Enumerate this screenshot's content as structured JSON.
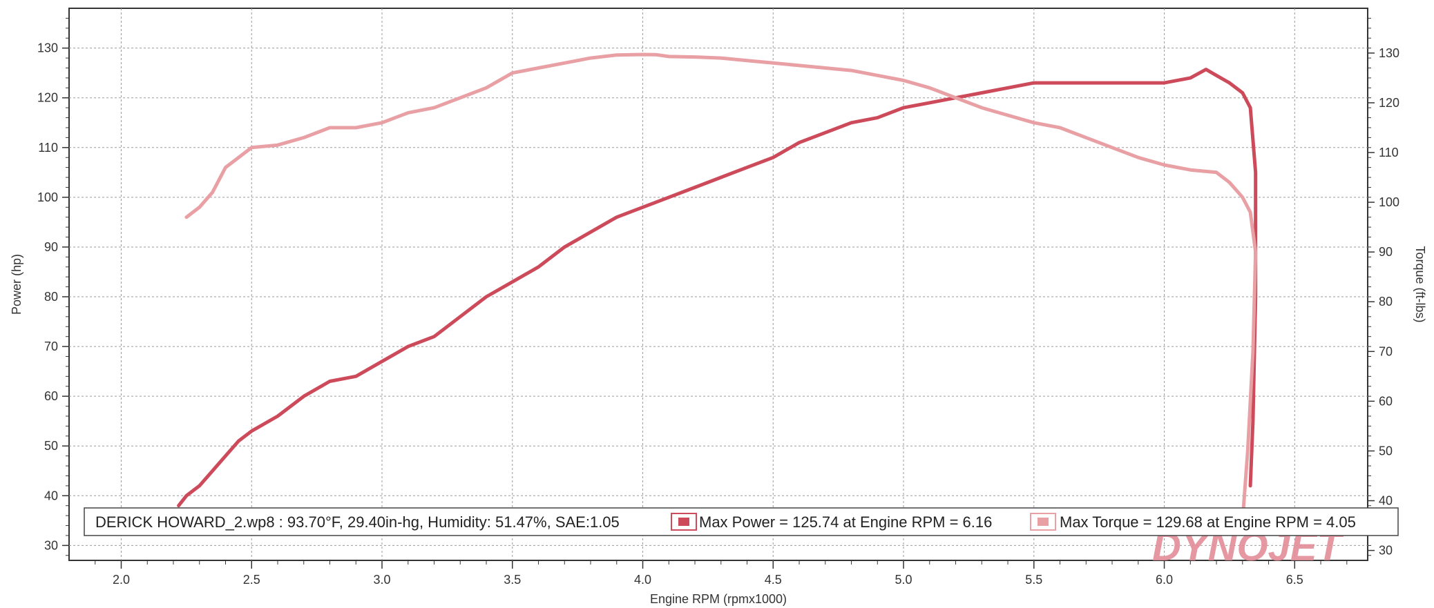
{
  "chart_data": {
    "type": "line",
    "title": "",
    "xlabel": "Engine RPM (rpmx1000)",
    "ylabel": "Power (hp)",
    "y2label": "Torque (ft-lbs)",
    "xlim": [
      1.8,
      6.78
    ],
    "ylim": [
      27,
      138
    ],
    "y2lim": [
      28,
      139
    ],
    "x_ticks": [
      "2.0",
      "2.5",
      "3.0",
      "3.5",
      "4.0",
      "4.5",
      "5.0",
      "5.5",
      "6.0",
      "6.5"
    ],
    "y_ticks": [
      "30",
      "40",
      "50",
      "60",
      "70",
      "80",
      "90",
      "100",
      "110",
      "120",
      "130"
    ],
    "y2_ticks": [
      "30",
      "40",
      "50",
      "60",
      "70",
      "80",
      "90",
      "100",
      "110",
      "120",
      "130"
    ],
    "grid": true,
    "series": [
      {
        "name": "Power",
        "axis": "left",
        "color": "#cc4a5a",
        "x": [
          2.22,
          2.25,
          2.3,
          2.35,
          2.4,
          2.45,
          2.5,
          2.6,
          2.7,
          2.8,
          2.9,
          3.0,
          3.1,
          3.2,
          3.3,
          3.4,
          3.5,
          3.6,
          3.7,
          3.8,
          3.9,
          4.0,
          4.1,
          4.2,
          4.3,
          4.4,
          4.5,
          4.6,
          4.7,
          4.8,
          4.9,
          5.0,
          5.1,
          5.2,
          5.3,
          5.4,
          5.5,
          5.6,
          5.7,
          5.8,
          5.9,
          6.0,
          6.1,
          6.16,
          6.2,
          6.25,
          6.3,
          6.33,
          6.35,
          6.35,
          6.34,
          6.33
        ],
        "y": [
          38,
          40,
          42,
          45,
          48,
          51,
          53,
          56,
          60,
          63,
          64,
          67,
          70,
          72,
          76,
          80,
          83,
          86,
          90,
          93,
          96,
          98,
          100,
          102,
          104,
          106,
          108,
          111,
          113,
          115,
          116,
          118,
          119,
          120,
          121,
          122,
          123,
          123,
          123,
          123,
          123,
          123,
          124,
          125.7,
          124.5,
          123,
          121,
          118,
          105,
          80,
          55,
          42
        ]
      },
      {
        "name": "Torque",
        "axis": "right",
        "color": "#e8a0a4",
        "x": [
          2.25,
          2.3,
          2.35,
          2.4,
          2.45,
          2.5,
          2.6,
          2.7,
          2.8,
          2.9,
          3.0,
          3.1,
          3.2,
          3.3,
          3.4,
          3.5,
          3.6,
          3.7,
          3.8,
          3.9,
          4.0,
          4.05,
          4.1,
          4.2,
          4.3,
          4.4,
          4.5,
          4.6,
          4.7,
          4.8,
          4.9,
          5.0,
          5.1,
          5.2,
          5.3,
          5.4,
          5.5,
          5.6,
          5.7,
          5.8,
          5.9,
          6.0,
          6.1,
          6.2,
          6.25,
          6.3,
          6.33,
          6.35,
          6.34,
          6.32,
          6.3
        ],
        "y": [
          97,
          99,
          102,
          107,
          109,
          111,
          111.5,
          113,
          115,
          115,
          116,
          118,
          119,
          121,
          123,
          126,
          127,
          128,
          129,
          129.6,
          129.7,
          129.68,
          129.3,
          129.2,
          129,
          128.5,
          128,
          127.5,
          127,
          126.5,
          125.5,
          124.5,
          123,
          121,
          119,
          117.5,
          116,
          115,
          113,
          111,
          109,
          107.5,
          106.5,
          106,
          104,
          101,
          98,
          90,
          70,
          50,
          36
        ]
      }
    ],
    "legend": {
      "run_info": "DERICK HOWARD_2.wp8 : 93.70°F, 29.40in-hg, Humidity: 51.47%, SAE:1.05",
      "power_summary": "Max Power = 125.74 at Engine RPM = 6.16",
      "torque_summary": "Max Torque = 129.68 at Engine RPM = 4.05",
      "placement": "bottom"
    },
    "logo": "DYNOJET"
  }
}
